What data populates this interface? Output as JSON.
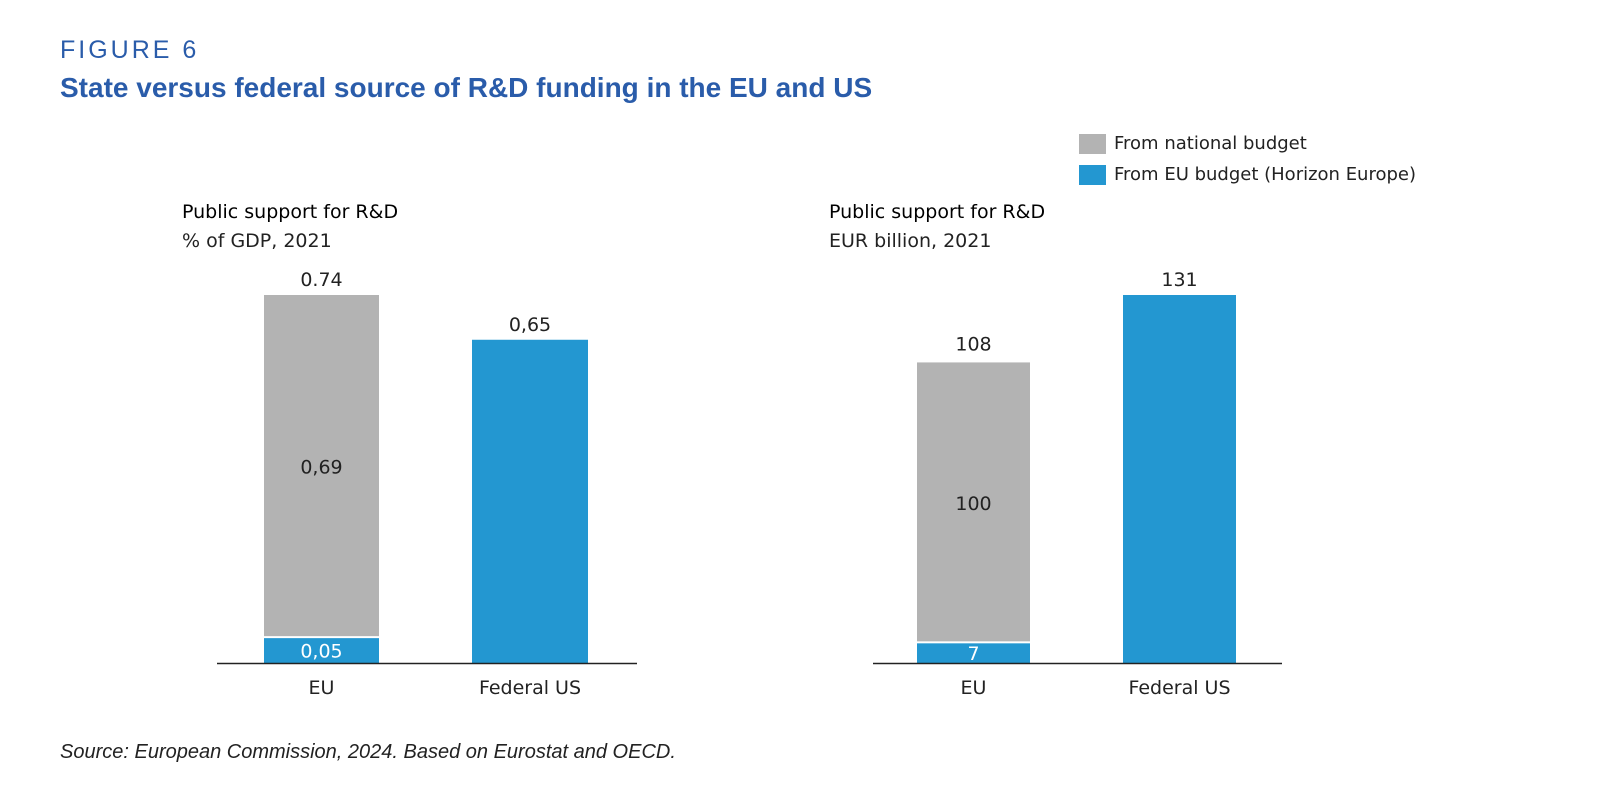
{
  "figure_label": "FIGURE 6",
  "title": "State versus federal source of R&D funding in the EU and US",
  "source": "Source: European Commission, 2024. Based on Eurostat and OECD.",
  "legend": [
    {
      "label": "From national budget",
      "color": "#b3b3b3"
    },
    {
      "label": "From EU budget (Horizon Europe)",
      "color": "#2397d1"
    }
  ],
  "chart_data": [
    {
      "type": "bar",
      "stacked": true,
      "title": "Public support for R&D",
      "subtitle": "% of GDP, 2021",
      "categories": [
        "EU",
        "Federal US"
      ],
      "series": [
        {
          "name": "From EU budget (Horizon Europe)",
          "color": "#2397d1",
          "values": [
            0.05,
            0.65
          ],
          "labels": [
            "0,05",
            ""
          ]
        },
        {
          "name": "From national budget",
          "color": "#b3b3b3",
          "values": [
            0.69,
            0
          ],
          "labels": [
            "0,69",
            ""
          ]
        }
      ],
      "totals": [
        0.74,
        0.65
      ],
      "total_labels": [
        "0.74",
        "0,65"
      ],
      "ylim": [
        0,
        0.74
      ]
    },
    {
      "type": "bar",
      "stacked": true,
      "title": "Public support for R&D",
      "subtitle": "EUR billion,  2021",
      "categories": [
        "EU",
        "Federal US"
      ],
      "series": [
        {
          "name": "From EU budget (Horizon Europe)",
          "color": "#2397d1",
          "values": [
            7,
            131
          ],
          "labels": [
            "7",
            ""
          ]
        },
        {
          "name": "From national budget",
          "color": "#b3b3b3",
          "values": [
            100,
            0
          ],
          "labels": [
            "100",
            ""
          ]
        }
      ],
      "totals": [
        108,
        131
      ],
      "total_labels": [
        "108",
        "131"
      ],
      "ylim": [
        0,
        131
      ]
    }
  ]
}
